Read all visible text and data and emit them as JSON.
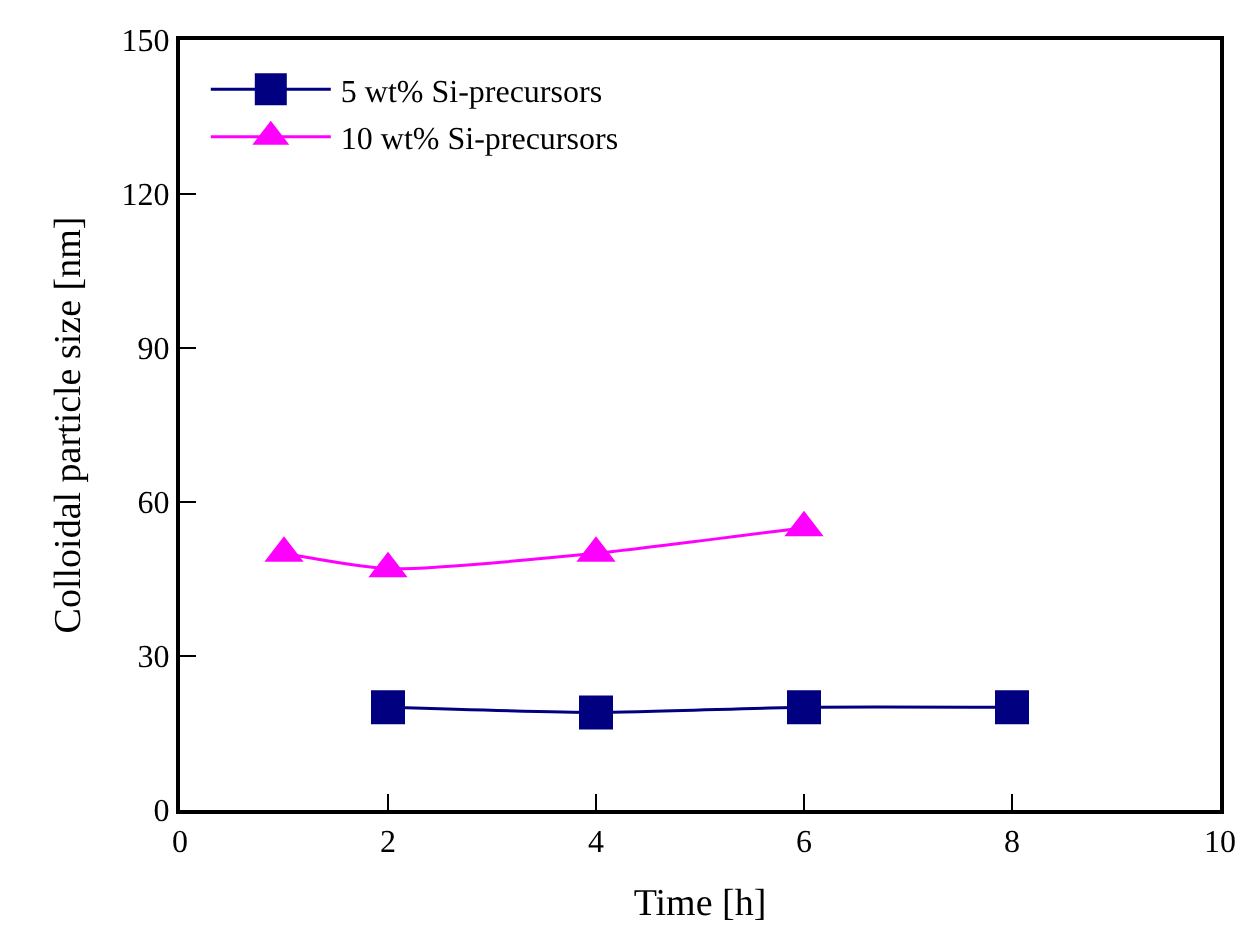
{
  "chart_data": {
    "type": "line",
    "xlabel": "Time [h]",
    "ylabel": "Colloidal particle size [nm]",
    "xlim": [
      0,
      10
    ],
    "xticks": [
      0,
      2,
      4,
      6,
      8,
      10
    ],
    "ylim": [
      0,
      150
    ],
    "yticks": [
      0,
      30,
      60,
      90,
      120,
      150
    ],
    "legend": "top left",
    "line_style": "solid",
    "series": [
      {
        "name": "5 wt% Si-precursors",
        "color": "#000080",
        "marker": "square",
        "x": [
          2,
          4,
          6,
          8
        ],
        "values": [
          20,
          19,
          20,
          20
        ]
      },
      {
        "name": "10 wt% Si-precursors",
        "color": "#ff00ff",
        "marker": "triangle",
        "x": [
          1,
          2,
          4,
          6
        ],
        "values": [
          50,
          47,
          50,
          55
        ]
      }
    ]
  }
}
